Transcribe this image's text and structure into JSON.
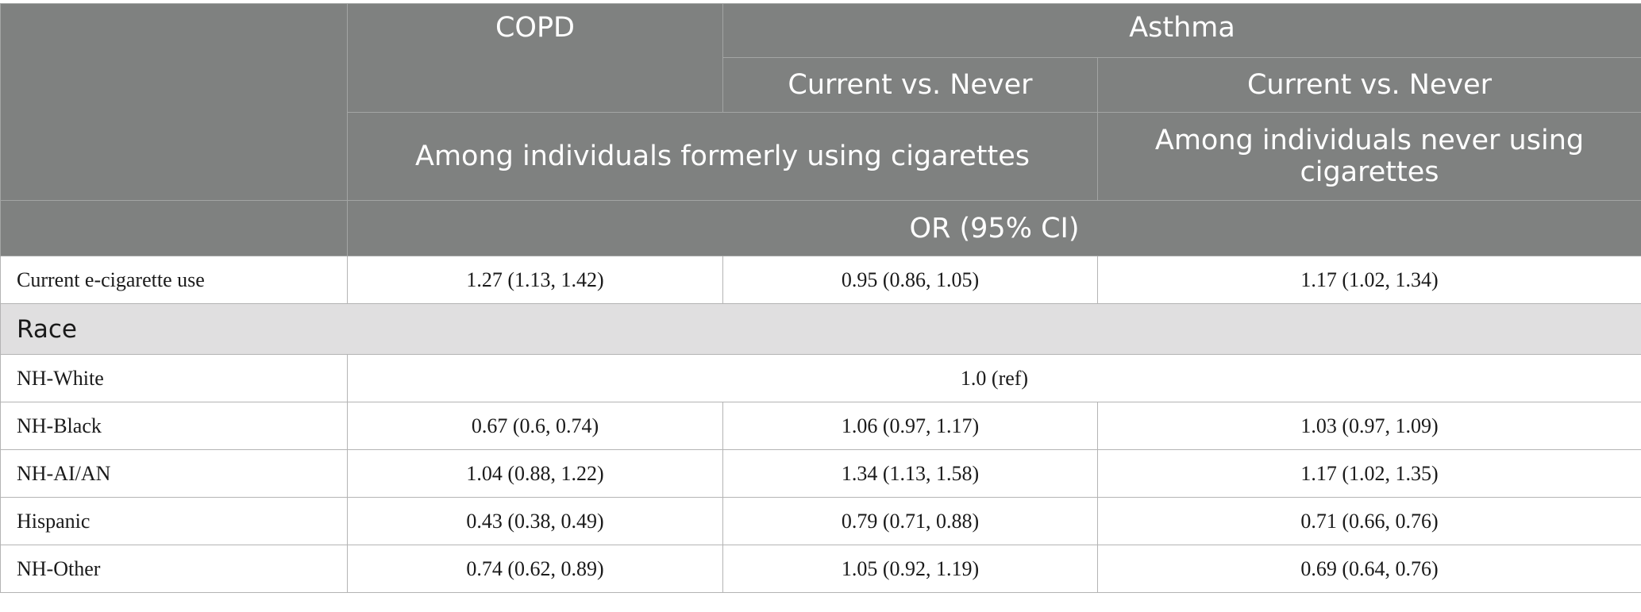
{
  "header": {
    "copd": "COPD",
    "asthma": "Asthma",
    "current_vs_never_1": "Current vs. Never",
    "current_vs_never_2": "Current vs. Never",
    "former_smokers": "Among individuals formerly using cigarettes",
    "never_smokers": "Among individuals never using cigarettes",
    "or_label": "OR (95% CI)"
  },
  "rows": {
    "ecig": {
      "label": "Current e-cigarette use",
      "copd": "1.27 (1.13, 1.42)",
      "asthma_former": "0.95 (0.86, 1.05)",
      "asthma_never": "1.17 (1.02, 1.34)"
    },
    "race_section": "Race",
    "nh_white": {
      "label": "NH-White",
      "ref": "1.0 (ref)"
    },
    "nh_black": {
      "label": "NH-Black",
      "copd": "0.67 (0.6, 0.74)",
      "asthma_former": "1.06 (0.97, 1.17)",
      "asthma_never": "1.03 (0.97, 1.09)"
    },
    "nh_aian": {
      "label": "NH-AI/AN",
      "copd": "1.04 (0.88, 1.22)",
      "asthma_former": "1.34 (1.13, 1.58)",
      "asthma_never": "1.17 (1.02, 1.35)"
    },
    "hispanic": {
      "label": "Hispanic",
      "copd": "0.43 (0.38, 0.49)",
      "asthma_former": "0.79 (0.71, 0.88)",
      "asthma_never": "0.71 (0.66, 0.76)"
    },
    "nh_other": {
      "label": "NH-Other",
      "copd": "0.74 (0.62, 0.89)",
      "asthma_former": "1.05 (0.92, 1.19)",
      "asthma_never": "0.69 (0.64, 0.76)"
    }
  }
}
